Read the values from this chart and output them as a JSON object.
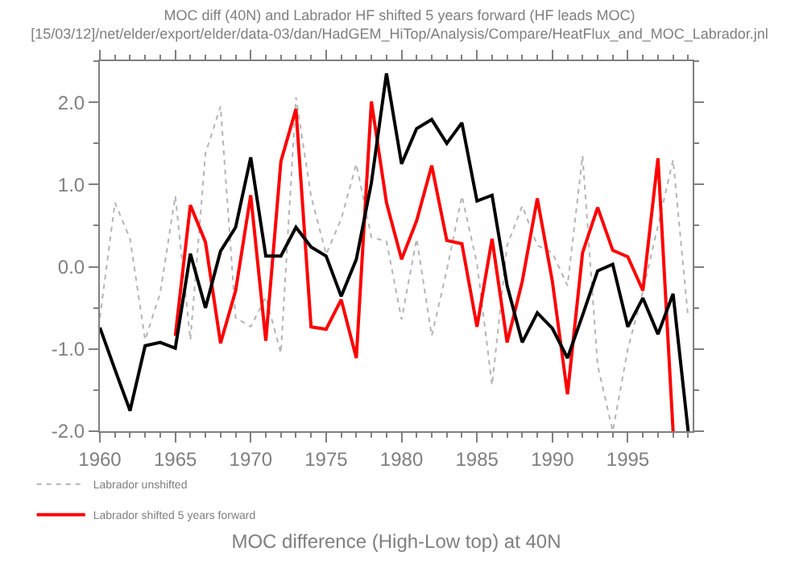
{
  "chart_data": {
    "type": "line",
    "title": "MOC diff (40N) and Labrador HF shifted 5 years forward (HF leads MOC)",
    "subtitle": "[15/03/12]/net/elder/export/elder/data-03/dan/HadGEM_HiTop/Analysis/Compare/HeatFlux_and_MOC_Labrador.jnl",
    "xlabel": "MOC difference (High-Low top) at 40N",
    "x": [
      1960,
      1961,
      1962,
      1963,
      1964,
      1965,
      1966,
      1967,
      1968,
      1969,
      1970,
      1971,
      1972,
      1973,
      1974,
      1975,
      1976,
      1977,
      1978,
      1979,
      1980,
      1981,
      1982,
      1983,
      1984,
      1985,
      1986,
      1987,
      1988,
      1989,
      1990,
      1991,
      1992,
      1993,
      1994,
      1995,
      1996,
      1997,
      1998,
      1999
    ],
    "series": [
      {
        "name": "Labrador unshifted",
        "color": "#b4b4b4",
        "line_style": "dotted",
        "values": [
          -0.62,
          0.78,
          0.34,
          -0.89,
          -0.32,
          0.86,
          -0.89,
          1.38,
          1.95,
          -0.62,
          -0.73,
          -0.37,
          -1.05,
          2.06,
          0.86,
          0.15,
          0.58,
          1.25,
          0.36,
          0.31,
          -0.64,
          0.34,
          -0.84,
          -0.04,
          0.86,
          0.04,
          -1.44,
          0.26,
          0.74,
          0.26,
          0.17,
          -0.23,
          1.35,
          -1.2,
          -2.0,
          -1.0,
          -0.3,
          0.5,
          1.3,
          -0.62
        ]
      },
      {
        "name": "Labrador shifted 5 years forward",
        "color": "#ff0000",
        "line_style": "solid",
        "values": [
          null,
          null,
          null,
          null,
          null,
          -0.84,
          0.75,
          0.3,
          -0.93,
          -0.29,
          0.87,
          -0.9,
          1.28,
          1.92,
          -0.73,
          -0.76,
          -0.4,
          -1.11,
          2.01,
          0.78,
          0.09,
          0.56,
          1.23,
          0.32,
          0.28,
          -0.73,
          0.34,
          -0.92,
          -0.18,
          0.83,
          -0.18,
          -1.55,
          0.17,
          0.72,
          0.2,
          0.12,
          -0.29,
          1.32,
          -2.0,
          null
        ]
      },
      {
        "color": "#000000",
        "line_style": "solid",
        "values": [
          -0.74,
          -1.25,
          -1.75,
          -0.96,
          -0.92,
          -0.99,
          0.16,
          -0.5,
          0.19,
          0.48,
          1.33,
          0.13,
          0.13,
          0.48,
          0.24,
          0.13,
          -0.36,
          0.09,
          1.02,
          2.35,
          1.25,
          1.68,
          1.79,
          1.5,
          1.75,
          0.8,
          0.87,
          -0.23,
          -0.92,
          -0.56,
          -0.75,
          -1.11,
          -0.59,
          -0.05,
          0.03,
          -0.73,
          -0.38,
          -0.82,
          -0.33,
          -2.0
        ]
      }
    ],
    "xlim": [
      1960,
      1999.3
    ],
    "xticks": [
      1960,
      1965,
      1970,
      1975,
      1980,
      1985,
      1990,
      1995
    ],
    "ylim": [
      -2.0,
      2.5
    ],
    "yticks": [
      {
        "value": -2,
        "label": "-2.0"
      },
      {
        "value": -1,
        "label": "-1.0"
      },
      {
        "value": 0,
        "label": "0.0"
      },
      {
        "value": 1,
        "label": "1.0"
      },
      {
        "value": 2,
        "label": "2.0"
      }
    ],
    "legend": "bottom left",
    "marker": "none"
  }
}
